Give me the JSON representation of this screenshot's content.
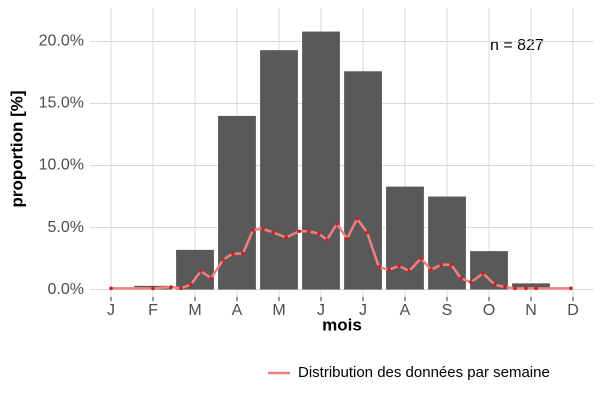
{
  "chart_data": {
    "type": "bar",
    "ylabel": "proportion [%]",
    "xlabel": "mois",
    "annotation": "n = 827",
    "categories": [
      "J",
      "F",
      "M",
      "A",
      "M",
      "J",
      "J",
      "A",
      "S",
      "O",
      "N",
      "D"
    ],
    "values": [
      0,
      0.3,
      3.2,
      14.0,
      19.3,
      20.8,
      17.6,
      8.3,
      7.5,
      3.1,
      0.5,
      0
    ],
    "color": "#595959",
    "line": {
      "type": "line",
      "name": "Distribution des données par semaine",
      "color": "#f08080",
      "point_color": "#cc1f1f",
      "x": [
        1.0,
        2.0,
        2.43,
        2.67,
        2.9,
        3.14,
        3.38,
        3.67,
        3.9,
        4.14,
        4.38,
        4.62,
        4.86,
        5.17,
        5.48,
        5.71,
        5.95,
        6.14,
        6.38,
        6.62,
        6.86,
        7.1,
        7.38,
        7.62,
        7.86,
        8.1,
        8.38,
        8.62,
        8.86,
        9.1,
        9.33,
        9.57,
        9.86,
        10.14,
        10.38,
        10.62,
        10.88,
        11.12,
        11.95
      ],
      "values": [
        0.1,
        0.1,
        0.2,
        0.1,
        0.4,
        1.5,
        0.9,
        2.4,
        2.9,
        2.9,
        4.8,
        4.9,
        4.6,
        4.2,
        4.7,
        4.7,
        4.5,
        4.0,
        5.3,
        4.1,
        5.7,
        4.6,
        1.8,
        1.6,
        1.9,
        1.5,
        2.5,
        1.6,
        2.0,
        2.0,
        0.9,
        0.6,
        1.3,
        0.4,
        0.2,
        0.1,
        0.1,
        0.1,
        0.1
      ]
    },
    "xlim": [
      0.5,
      12.5
    ],
    "ylim": [
      -0.6,
      22.7
    ],
    "yticks": [
      {
        "value": 0,
        "label": "0.0%"
      },
      {
        "value": 5,
        "label": "5.0%"
      },
      {
        "value": 10,
        "label": "10.0%"
      },
      {
        "value": 15,
        "label": "15.0%"
      },
      {
        "value": 20,
        "label": "20.0%"
      }
    ],
    "grid": true,
    "legend": "bottom-right"
  }
}
